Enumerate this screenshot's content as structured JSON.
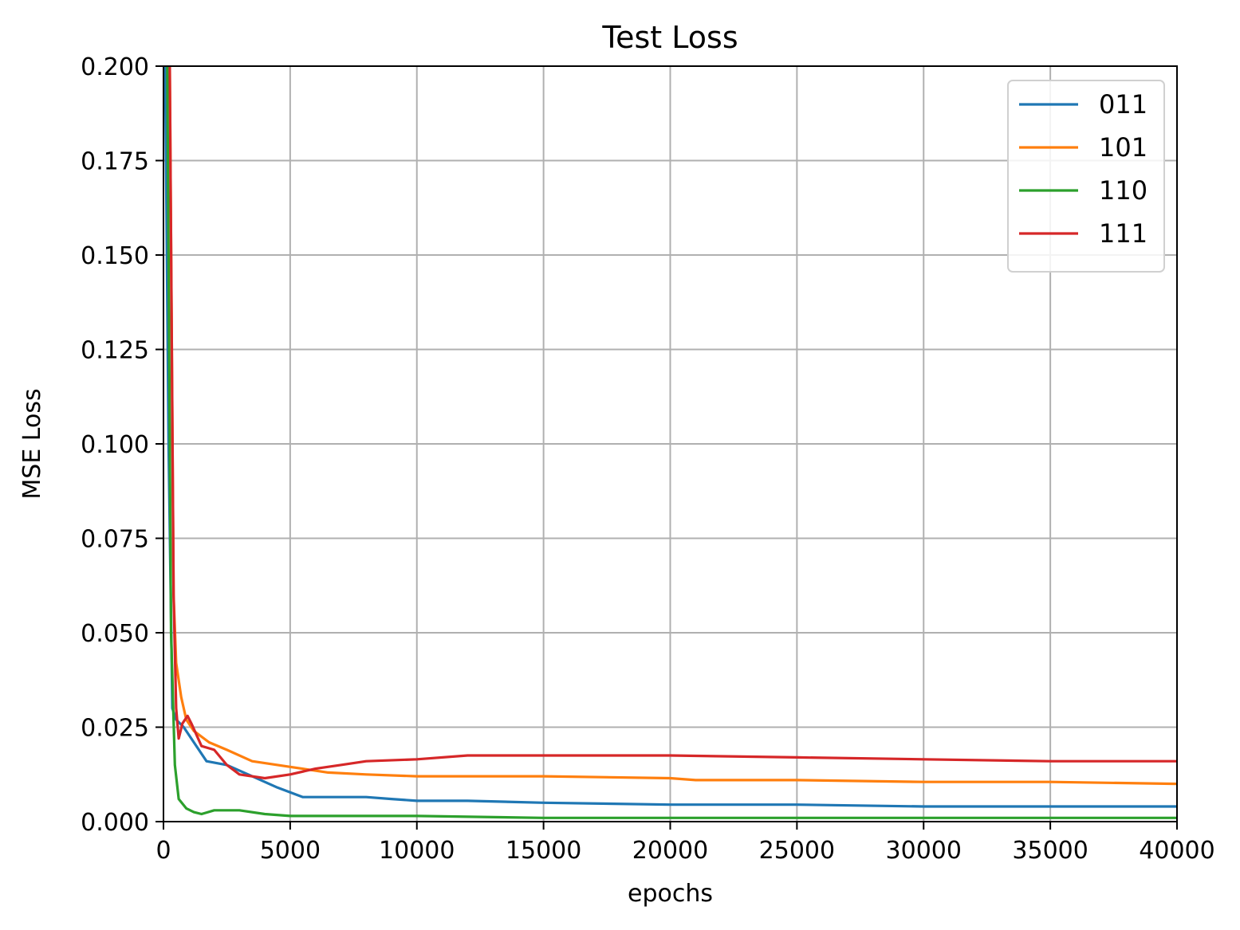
{
  "chart_data": {
    "type": "line",
    "title": "Test Loss",
    "xlabel": "epochs",
    "ylabel": "MSE Loss",
    "xlim": [
      0,
      40000
    ],
    "ylim": [
      0,
      0.2
    ],
    "xticks": [
      0,
      5000,
      10000,
      15000,
      20000,
      25000,
      30000,
      35000,
      40000
    ],
    "xtick_labels": [
      "0",
      "5000",
      "10000",
      "15000",
      "20000",
      "25000",
      "30000",
      "35000",
      "40000"
    ],
    "yticks": [
      0,
      0.025,
      0.05,
      0.075,
      0.1,
      0.125,
      0.15,
      0.175,
      0.2
    ],
    "ytick_labels": [
      "0.000",
      "0.025",
      "0.050",
      "0.075",
      "0.100",
      "0.125",
      "0.150",
      "0.175",
      "0.200"
    ],
    "grid": true,
    "legend_position": "top-right",
    "series": [
      {
        "name": "011",
        "color": "#1f77b4",
        "x": [
          0,
          200,
          350,
          500,
          800,
          1200,
          1700,
          2500,
          3500,
          4500,
          5500,
          7000,
          8000,
          9000,
          10000,
          12000,
          15000,
          20000,
          25000,
          30000,
          35000,
          40000
        ],
        "y": [
          0.25,
          0.1,
          0.03,
          0.027,
          0.025,
          0.021,
          0.016,
          0.015,
          0.012,
          0.009,
          0.0065,
          0.0065,
          0.0065,
          0.006,
          0.0055,
          0.0055,
          0.005,
          0.0045,
          0.0045,
          0.004,
          0.004,
          0.004
        ]
      },
      {
        "name": "101",
        "color": "#ff7f0e",
        "x": [
          0,
          250,
          400,
          500,
          700,
          900,
          1200,
          1800,
          2500,
          3500,
          5000,
          6500,
          8000,
          10000,
          15000,
          20000,
          21000,
          25000,
          30000,
          35000,
          40000
        ],
        "y": [
          0.25,
          0.2,
          0.06,
          0.042,
          0.033,
          0.027,
          0.024,
          0.021,
          0.019,
          0.016,
          0.0145,
          0.013,
          0.0125,
          0.012,
          0.012,
          0.0115,
          0.011,
          0.011,
          0.0105,
          0.0105,
          0.01
        ]
      },
      {
        "name": "110",
        "color": "#2ca02c",
        "x": [
          0,
          150,
          300,
          450,
          600,
          900,
          1200,
          1500,
          2000,
          3000,
          4000,
          5000,
          6000,
          10000,
          15000,
          20000,
          30000,
          40000
        ],
        "y": [
          0.25,
          0.2,
          0.05,
          0.015,
          0.006,
          0.0035,
          0.0025,
          0.002,
          0.003,
          0.003,
          0.002,
          0.0015,
          0.0015,
          0.0015,
          0.001,
          0.001,
          0.001,
          0.001
        ]
      },
      {
        "name": "111",
        "color": "#d62728",
        "x": [
          0,
          250,
          400,
          500,
          600,
          750,
          950,
          1100,
          1500,
          2000,
          2500,
          3000,
          4000,
          5000,
          6000,
          7000,
          8000,
          10000,
          12000,
          15000,
          20000,
          25000,
          30000,
          35000,
          40000
        ],
        "y": [
          0.25,
          0.2,
          0.06,
          0.03,
          0.022,
          0.026,
          0.028,
          0.026,
          0.02,
          0.019,
          0.015,
          0.0125,
          0.0115,
          0.0125,
          0.014,
          0.015,
          0.016,
          0.0165,
          0.0175,
          0.0175,
          0.0175,
          0.017,
          0.0165,
          0.016,
          0.016
        ]
      }
    ]
  }
}
